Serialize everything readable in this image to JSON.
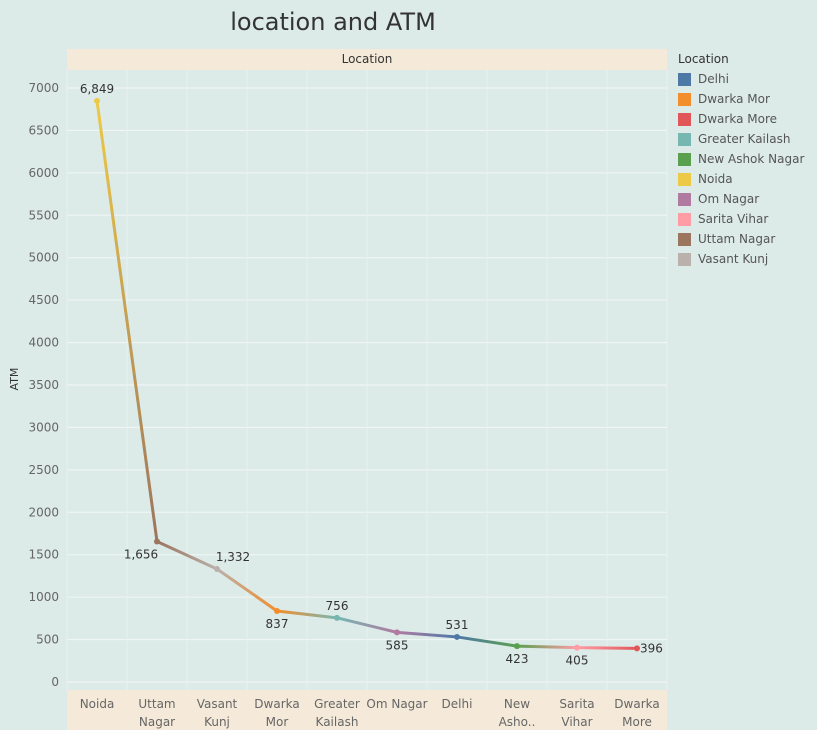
{
  "chart_data": {
    "type": "line",
    "title": "location and ATM",
    "header": "Location",
    "xlabel": "",
    "ylabel": "ATM",
    "ylim": [
      0,
      7000
    ],
    "yticks": [
      0,
      500,
      1000,
      1500,
      2000,
      2500,
      3000,
      3500,
      4000,
      4500,
      5000,
      5500,
      6000,
      6500,
      7000
    ],
    "grid": true,
    "legend_title": "Location",
    "legend_position": "right",
    "categories": [
      {
        "label": [
          "Noida"
        ],
        "name": "Noida"
      },
      {
        "label": [
          "Uttam",
          "Nagar"
        ],
        "name": "Uttam Nagar"
      },
      {
        "label": [
          "Vasant",
          "Kunj"
        ],
        "name": "Vasant Kunj"
      },
      {
        "label": [
          "Dwarka",
          "Mor"
        ],
        "name": "Dwarka Mor"
      },
      {
        "label": [
          "Greater",
          "Kailash"
        ],
        "name": "Greater Kailash"
      },
      {
        "label": [
          "Om Nagar"
        ],
        "name": "Om Nagar"
      },
      {
        "label": [
          "Delhi"
        ],
        "name": "Delhi"
      },
      {
        "label": [
          "New",
          "Asho.."
        ],
        "name": "New Ashok Nagar"
      },
      {
        "label": [
          "Sarita",
          "Vihar"
        ],
        "name": "Sarita Vihar"
      },
      {
        "label": [
          "Dwarka",
          "More"
        ],
        "name": "Dwarka More"
      }
    ],
    "values": [
      6849,
      1656,
      1332,
      837,
      756,
      585,
      531,
      423,
      405,
      396
    ],
    "data_labels": [
      "6,849",
      "1,656",
      "1,332",
      "837",
      "756",
      "585",
      "531",
      "423",
      "405",
      "396"
    ],
    "label_position": [
      "above",
      "below",
      "above",
      "below",
      "above",
      "below",
      "above",
      "below",
      "below",
      "right"
    ],
    "legend": [
      {
        "name": "Delhi",
        "color": "#4e79a7"
      },
      {
        "name": "Dwarka Mor",
        "color": "#f28e2b"
      },
      {
        "name": "Dwarka More",
        "color": "#e15759"
      },
      {
        "name": "Greater Kailash",
        "color": "#76b7b2"
      },
      {
        "name": "New Ashok Nagar",
        "color": "#59a14f"
      },
      {
        "name": "Noida",
        "color": "#edc948"
      },
      {
        "name": "Om Nagar",
        "color": "#b07aa1"
      },
      {
        "name": "Sarita Vihar",
        "color": "#ff9da7"
      },
      {
        "name": "Uttam Nagar",
        "color": "#9c755f"
      },
      {
        "name": "Vasant Kunj",
        "color": "#bab0ac"
      }
    ]
  }
}
